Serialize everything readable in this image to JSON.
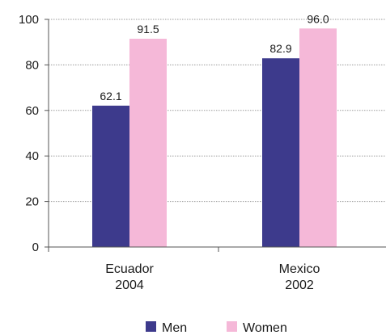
{
  "chart_data": {
    "type": "bar",
    "categories": [
      [
        "Ecuador",
        "2004"
      ],
      [
        "Mexico",
        "2002"
      ]
    ],
    "series": [
      {
        "name": "Men",
        "values": [
          62.1,
          82.9
        ],
        "labels": [
          "62.1",
          "82.9"
        ],
        "color": "#3d3a8c"
      },
      {
        "name": "Women",
        "values": [
          91.5,
          96.0
        ],
        "labels": [
          "91.5",
          "96.0"
        ],
        "color": "#f5b8d8"
      }
    ],
    "ylim": [
      0,
      100
    ],
    "yticks": [
      0,
      20,
      40,
      60,
      80,
      100
    ],
    "grid": true,
    "legend": "bottom"
  }
}
